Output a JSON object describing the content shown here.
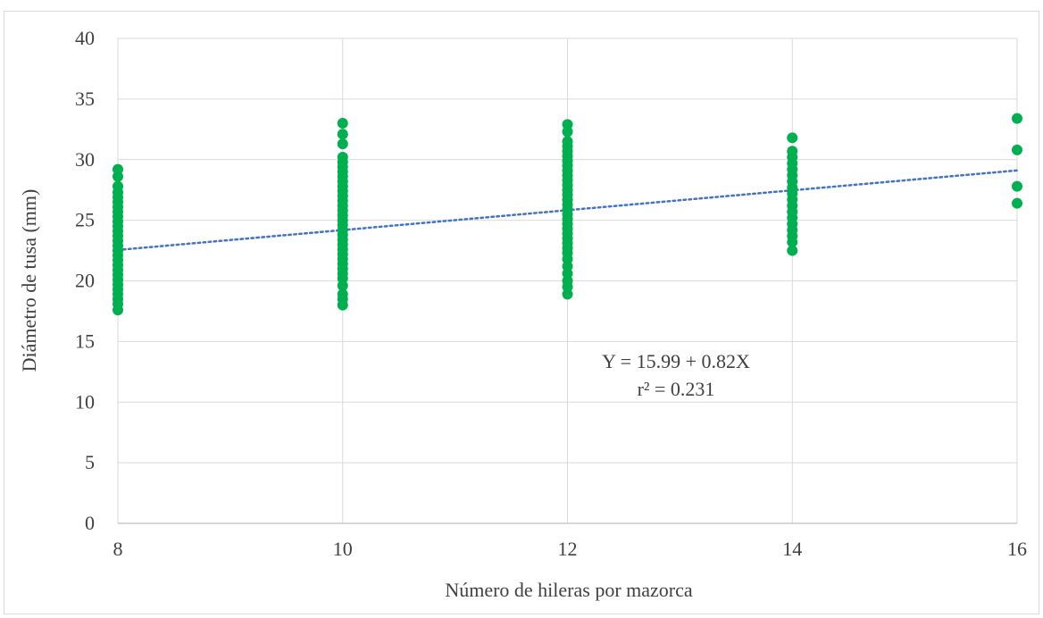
{
  "chart_data": {
    "type": "scatter",
    "title": "",
    "xlabel": "Número de hileras por mazorca",
    "ylabel": "Diámetro de tusa (mm)",
    "xlim": [
      8,
      16
    ],
    "ylim": [
      0,
      40
    ],
    "xticks": [
      8,
      10,
      12,
      14,
      16
    ],
    "yticks": [
      0,
      5,
      10,
      15,
      20,
      25,
      30,
      35,
      40
    ],
    "grid": true,
    "point_color": "#00b050",
    "trend_color": "#4472c4",
    "equation": "Y = 15.99 + 0.82X",
    "r_squared": "r² = 0.231",
    "trendline": {
      "intercept": 15.99,
      "slope": 0.82
    },
    "points": [
      {
        "x": 8,
        "y": 29.2
      },
      {
        "x": 8,
        "y": 28.6
      },
      {
        "x": 8,
        "y": 27.8
      },
      {
        "x": 8,
        "y": 27.3
      },
      {
        "x": 8,
        "y": 26.9
      },
      {
        "x": 8,
        "y": 26.5
      },
      {
        "x": 8,
        "y": 26.1
      },
      {
        "x": 8,
        "y": 25.7
      },
      {
        "x": 8,
        "y": 25.3
      },
      {
        "x": 8,
        "y": 24.9
      },
      {
        "x": 8,
        "y": 24.5
      },
      {
        "x": 8,
        "y": 24.1
      },
      {
        "x": 8,
        "y": 23.7
      },
      {
        "x": 8,
        "y": 23.3
      },
      {
        "x": 8,
        "y": 22.9
      },
      {
        "x": 8,
        "y": 22.5
      },
      {
        "x": 8,
        "y": 22.1
      },
      {
        "x": 8,
        "y": 21.7
      },
      {
        "x": 8,
        "y": 21.3
      },
      {
        "x": 8,
        "y": 20.9
      },
      {
        "x": 8,
        "y": 20.5
      },
      {
        "x": 8,
        "y": 20.1
      },
      {
        "x": 8,
        "y": 19.7
      },
      {
        "x": 8,
        "y": 19.3
      },
      {
        "x": 8,
        "y": 18.9
      },
      {
        "x": 8,
        "y": 18.5
      },
      {
        "x": 8,
        "y": 18.1
      },
      {
        "x": 8,
        "y": 17.6
      },
      {
        "x": 10,
        "y": 33.0
      },
      {
        "x": 10,
        "y": 32.1
      },
      {
        "x": 10,
        "y": 31.3
      },
      {
        "x": 10,
        "y": 30.2
      },
      {
        "x": 10,
        "y": 29.8
      },
      {
        "x": 10,
        "y": 29.4
      },
      {
        "x": 10,
        "y": 29.0
      },
      {
        "x": 10,
        "y": 28.6
      },
      {
        "x": 10,
        "y": 28.2
      },
      {
        "x": 10,
        "y": 27.8
      },
      {
        "x": 10,
        "y": 27.4
      },
      {
        "x": 10,
        "y": 27.0
      },
      {
        "x": 10,
        "y": 26.6
      },
      {
        "x": 10,
        "y": 26.2
      },
      {
        "x": 10,
        "y": 25.8
      },
      {
        "x": 10,
        "y": 25.4
      },
      {
        "x": 10,
        "y": 25.0
      },
      {
        "x": 10,
        "y": 24.6
      },
      {
        "x": 10,
        "y": 24.2
      },
      {
        "x": 10,
        "y": 23.8
      },
      {
        "x": 10,
        "y": 23.4
      },
      {
        "x": 10,
        "y": 23.0
      },
      {
        "x": 10,
        "y": 22.6
      },
      {
        "x": 10,
        "y": 22.2
      },
      {
        "x": 10,
        "y": 21.8
      },
      {
        "x": 10,
        "y": 21.4
      },
      {
        "x": 10,
        "y": 21.0
      },
      {
        "x": 10,
        "y": 20.6
      },
      {
        "x": 10,
        "y": 20.2
      },
      {
        "x": 10,
        "y": 19.6
      },
      {
        "x": 10,
        "y": 18.9
      },
      {
        "x": 10,
        "y": 18.5
      },
      {
        "x": 10,
        "y": 18.0
      },
      {
        "x": 12,
        "y": 32.9
      },
      {
        "x": 12,
        "y": 32.3
      },
      {
        "x": 12,
        "y": 31.5
      },
      {
        "x": 12,
        "y": 31.1
      },
      {
        "x": 12,
        "y": 30.7
      },
      {
        "x": 12,
        "y": 30.3
      },
      {
        "x": 12,
        "y": 29.9
      },
      {
        "x": 12,
        "y": 29.5
      },
      {
        "x": 12,
        "y": 29.1
      },
      {
        "x": 12,
        "y": 28.7
      },
      {
        "x": 12,
        "y": 28.3
      },
      {
        "x": 12,
        "y": 27.9
      },
      {
        "x": 12,
        "y": 27.5
      },
      {
        "x": 12,
        "y": 27.1
      },
      {
        "x": 12,
        "y": 26.7
      },
      {
        "x": 12,
        "y": 26.3
      },
      {
        "x": 12,
        "y": 25.9
      },
      {
        "x": 12,
        "y": 25.5
      },
      {
        "x": 12,
        "y": 25.1
      },
      {
        "x": 12,
        "y": 24.7
      },
      {
        "x": 12,
        "y": 24.3
      },
      {
        "x": 12,
        "y": 23.9
      },
      {
        "x": 12,
        "y": 23.5
      },
      {
        "x": 12,
        "y": 23.1
      },
      {
        "x": 12,
        "y": 22.7
      },
      {
        "x": 12,
        "y": 22.3
      },
      {
        "x": 12,
        "y": 21.8
      },
      {
        "x": 12,
        "y": 21.2
      },
      {
        "x": 12,
        "y": 20.6
      },
      {
        "x": 12,
        "y": 20.0
      },
      {
        "x": 12,
        "y": 19.5
      },
      {
        "x": 12,
        "y": 18.9
      },
      {
        "x": 14,
        "y": 31.8
      },
      {
        "x": 14,
        "y": 30.7
      },
      {
        "x": 14,
        "y": 30.2
      },
      {
        "x": 14,
        "y": 29.7
      },
      {
        "x": 14,
        "y": 29.2
      },
      {
        "x": 14,
        "y": 28.7
      },
      {
        "x": 14,
        "y": 28.2
      },
      {
        "x": 14,
        "y": 27.7
      },
      {
        "x": 14,
        "y": 27.2
      },
      {
        "x": 14,
        "y": 26.7
      },
      {
        "x": 14,
        "y": 26.2
      },
      {
        "x": 14,
        "y": 25.7
      },
      {
        "x": 14,
        "y": 25.2
      },
      {
        "x": 14,
        "y": 24.7
      },
      {
        "x": 14,
        "y": 24.2
      },
      {
        "x": 14,
        "y": 23.7
      },
      {
        "x": 14,
        "y": 23.2
      },
      {
        "x": 14,
        "y": 22.5
      },
      {
        "x": 16,
        "y": 33.4
      },
      {
        "x": 16,
        "y": 30.8
      },
      {
        "x": 16,
        "y": 27.8
      },
      {
        "x": 16,
        "y": 26.4
      }
    ]
  }
}
